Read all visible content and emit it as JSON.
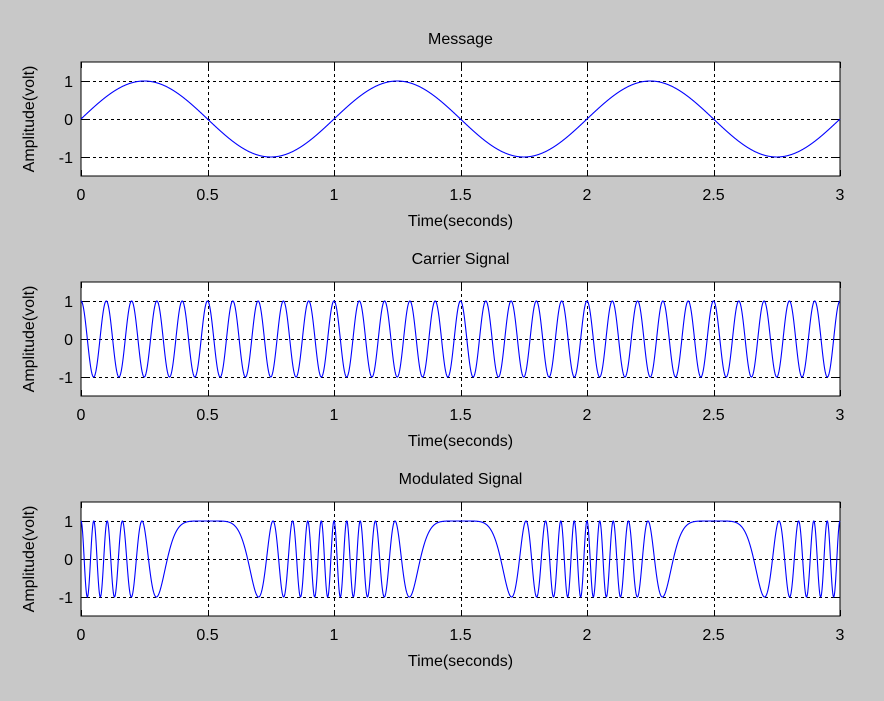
{
  "chart_data": [
    {
      "type": "line",
      "title": "Message",
      "xlabel": "Time(seconds)",
      "ylabel": "Amplitude(volt)",
      "xlim": [
        0,
        3
      ],
      "ylim": [
        -1.5,
        1.5
      ],
      "xticks": [
        0,
        0.5,
        1,
        1.5,
        2,
        2.5,
        3
      ],
      "xtick_labels": [
        "0",
        "0.5",
        "1",
        "1.5",
        "2",
        "2.5",
        "3"
      ],
      "yticks": [
        -1,
        0,
        1
      ],
      "ytick_labels": [
        "-1",
        "0",
        "1"
      ],
      "grid": true,
      "series": [
        {
          "function": "sin(2*pi*f*t)",
          "frequency_hz": 1,
          "amplitude": 1,
          "color": "#0000ff"
        }
      ]
    },
    {
      "type": "line",
      "title": "Carrier Signal",
      "xlabel": "Time(seconds)",
      "ylabel": "Amplitude(volt)",
      "xlim": [
        0,
        3
      ],
      "ylim": [
        -1.5,
        1.5
      ],
      "xticks": [
        0,
        0.5,
        1,
        1.5,
        2,
        2.5,
        3
      ],
      "xtick_labels": [
        "0",
        "0.5",
        "1",
        "1.5",
        "2",
        "2.5",
        "3"
      ],
      "yticks": [
        -1,
        0,
        1
      ],
      "ytick_labels": [
        "-1",
        "0",
        "1"
      ],
      "grid": true,
      "series": [
        {
          "function": "cos(2*pi*f*t)",
          "frequency_hz": 10,
          "amplitude": 1,
          "color": "#0000ff"
        }
      ]
    },
    {
      "type": "line",
      "title": "Modulated Signal",
      "xlabel": "Time(seconds)",
      "ylabel": "Amplitude(volt)",
      "xlim": [
        0,
        3
      ],
      "ylim": [
        -1.5,
        1.5
      ],
      "xticks": [
        0,
        0.5,
        1,
        1.5,
        2,
        2.5,
        3
      ],
      "xtick_labels": [
        "0",
        "0.5",
        "1",
        "1.5",
        "2",
        "2.5",
        "3"
      ],
      "yticks": [
        -1,
        0,
        1
      ],
      "ytick_labels": [
        "-1",
        "0",
        "1"
      ],
      "grid": true,
      "series": [
        {
          "function": "cos(2*pi*fc*t + k*sin(2*pi*fm*t))",
          "carrier_frequency_hz": 10,
          "message_frequency_hz": 1,
          "modulation_index": 10,
          "amplitude": 1,
          "color": "#0000ff"
        }
      ]
    }
  ]
}
